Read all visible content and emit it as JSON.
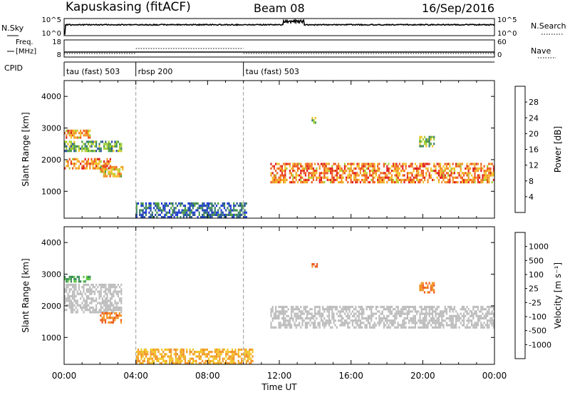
{
  "header": {
    "station": "Kapuskasing (fitACF)",
    "beam": "Beam 08",
    "date": "16/Sep/2016"
  },
  "top_panels": {
    "nsky": {
      "label": "N.Sky",
      "ticks": [
        "10^5",
        "10^0"
      ]
    },
    "nsearch": {
      "label": "N.Search",
      "ticks": [
        "10^5",
        "10^0"
      ]
    },
    "freq": {
      "label_lines": [
        "Freq.",
        "[MHz]"
      ],
      "ticks": [
        18,
        8
      ]
    },
    "nave": {
      "label": "Nave",
      "ticks": [
        60,
        0
      ]
    },
    "cpid": {
      "label": "CPID",
      "segments": [
        {
          "start_hour": 0,
          "end_hour": 4,
          "name": "tau (fast) 503"
        },
        {
          "start_hour": 4,
          "end_hour": 10,
          "name": "rbsp 200"
        },
        {
          "start_hour": 10,
          "end_hour": 24,
          "name": "tau (fast) 503"
        }
      ]
    }
  },
  "chart_data": [
    {
      "type": "heatmap",
      "quantity": "power",
      "xlabel": "",
      "ylabel": "Slant Range [km]",
      "xlim": [
        0,
        24
      ],
      "ylim": [
        150,
        4500
      ],
      "yticks": [
        1000,
        2000,
        3000,
        4000
      ],
      "colorbar": {
        "label": "Power [dB]",
        "range": [
          0,
          32
        ],
        "ticks": [
          4,
          8,
          12,
          16,
          20,
          24,
          28
        ],
        "colors": [
          "#1f3ad6",
          "#28509c",
          "#3a7f6c",
          "#4d9e3e",
          "#a8cf30",
          "#f2c22a",
          "#f29426",
          "#ee5a1f",
          "#e01e1e"
        ]
      },
      "echo_regions": [
        {
          "t": [
            0.0,
            2.6
          ],
          "range": [
            1750,
            2050
          ],
          "value": 24
        },
        {
          "t": [
            0.0,
            3.2
          ],
          "range": [
            2300,
            2600
          ],
          "value": 12
        },
        {
          "t": [
            0.0,
            1.4
          ],
          "range": [
            2700,
            2950
          ],
          "value": 22
        },
        {
          "t": [
            2.0,
            3.3
          ],
          "range": [
            1450,
            1800
          ],
          "value": 20
        },
        {
          "t": [
            4.0,
            10.2
          ],
          "range": [
            150,
            650
          ],
          "value": 6
        },
        {
          "t": [
            11.5,
            24.0
          ],
          "range": [
            1300,
            1900
          ],
          "value": 24
        },
        {
          "t": [
            13.8,
            14.1
          ],
          "range": [
            3200,
            3350
          ],
          "value": 14
        },
        {
          "t": [
            19.8,
            20.6
          ],
          "range": [
            2450,
            2750
          ],
          "value": 14
        }
      ]
    },
    {
      "type": "heatmap",
      "quantity": "velocity",
      "xlabel": "Time UT",
      "ylabel": "Slant Range [km]",
      "xlim": [
        0,
        24
      ],
      "ylim": [
        150,
        4500
      ],
      "xticks": [
        "00:00",
        "04:00",
        "08:00",
        "12:00",
        "16:00",
        "20:00",
        "00:00"
      ],
      "yticks": [
        1000,
        2000,
        3000,
        4000
      ],
      "colorbar": {
        "label": "Velocity [m s⁻¹]",
        "ticks": [
          "1000",
          "500",
          "100",
          "25",
          "-25",
          "-100",
          "-500",
          "-1000"
        ],
        "colors": [
          "#1f3ad6",
          "#2a6aa8",
          "#3c8f5c",
          "#5cc840",
          "#bdbdbd",
          "#f2c42a",
          "#f29426",
          "#ee5a1f",
          "#e01e1e"
        ]
      },
      "echo_regions": [
        {
          "t": [
            0.0,
            3.2
          ],
          "range": [
            1800,
            2700
          ],
          "value": 0
        },
        {
          "t": [
            2.0,
            3.2
          ],
          "range": [
            1450,
            1800
          ],
          "value": -500
        },
        {
          "t": [
            0.0,
            1.4
          ],
          "range": [
            2750,
            2950
          ],
          "value": 100
        },
        {
          "t": [
            4.0,
            10.5
          ],
          "range": [
            150,
            650
          ],
          "value": -100
        },
        {
          "t": [
            11.5,
            24.0
          ],
          "range": [
            1300,
            2000
          ],
          "value": 0
        },
        {
          "t": [
            13.8,
            14.1
          ],
          "range": [
            3200,
            3350
          ],
          "value": -500
        },
        {
          "t": [
            19.8,
            20.6
          ],
          "range": [
            2450,
            2750
          ],
          "value": -500
        }
      ]
    }
  ]
}
